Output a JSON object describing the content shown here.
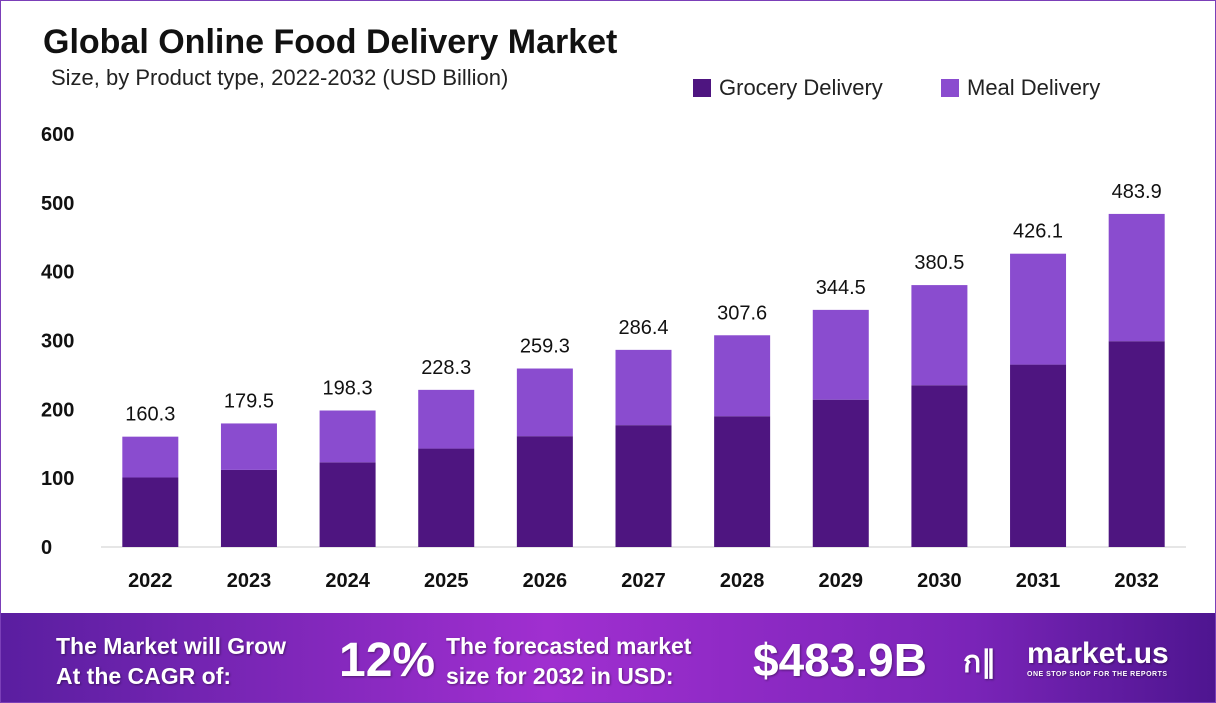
{
  "chart_data": {
    "type": "bar",
    "stacked": true,
    "title": "Global Online Food Delivery Market",
    "subtitle": "Size, by Product type, 2022-2032 (USD Billion)",
    "categories": [
      "2022",
      "2023",
      "2024",
      "2025",
      "2026",
      "2027",
      "2028",
      "2029",
      "2030",
      "2031",
      "2032"
    ],
    "series": [
      {
        "name": "Grocery Delivery",
        "color": "#4e1580",
        "values": [
          101,
          112,
          123,
          143,
          161,
          177,
          190,
          214,
          235,
          265,
          299
        ]
      },
      {
        "name": "Meal Delivery",
        "color": "#8a4ccf",
        "values": [
          59.3,
          67.5,
          75.3,
          85.3,
          98.3,
          109.4,
          117.6,
          130.5,
          145.5,
          161.1,
          184.9
        ]
      }
    ],
    "totals": [
      "160.3",
      "179.5",
      "198.3",
      "228.3",
      "259.3",
      "286.4",
      "307.6",
      "344.5",
      "380.5",
      "426.1",
      "483.9"
    ],
    "yticks": [
      "0",
      "100",
      "200",
      "300",
      "400",
      "500",
      "600"
    ],
    "ylim": [
      0,
      600
    ],
    "grid": false,
    "legend": "top-right"
  },
  "footer": {
    "cagr_line1": "The Market will Grow",
    "cagr_line2": "At the CAGR of:",
    "cagr": "12%",
    "forecast_line1": "The forecasted market",
    "forecast_line2": "size for 2032 in USD:",
    "forecast": "$483.9B",
    "brand": "market.us",
    "tagline": "ONE STOP SHOP FOR THE REPORTS"
  }
}
